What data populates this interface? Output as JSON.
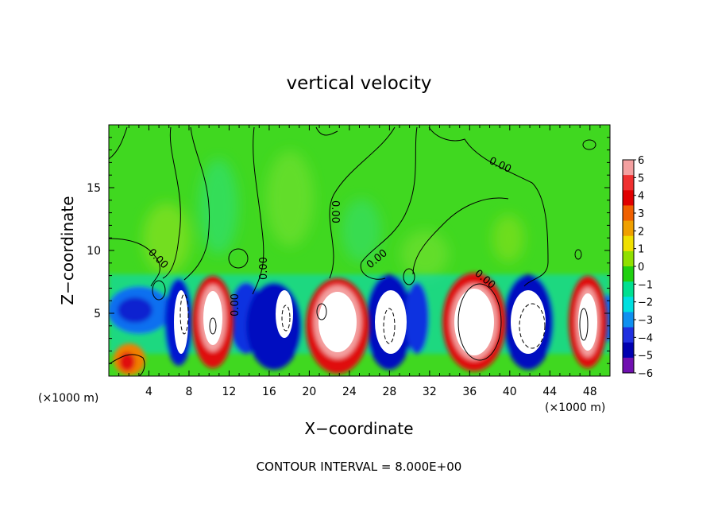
{
  "chart_data": {
    "type": "heatmap",
    "title": "vertical velocity",
    "xlabel": "X−coordinate",
    "ylabel": "Z−coordinate",
    "x_unit_left": "(×1000 m)",
    "x_unit_right": "(×1000 m)",
    "xlim": [
      0,
      50
    ],
    "ylim": [
      0,
      20
    ],
    "x_ticks": [
      4,
      8,
      12,
      16,
      20,
      24,
      28,
      32,
      36,
      40,
      44,
      48
    ],
    "y_ticks": [
      5,
      10,
      15
    ],
    "colorbar": {
      "ticks": [
        "6",
        "5",
        "4",
        "3",
        "2",
        "1",
        "0",
        "−1",
        "−2",
        "−3",
        "−4",
        "−5",
        "−6"
      ],
      "colors": [
        "#f4a0a0",
        "#f03030",
        "#e00000",
        "#f06000",
        "#f0a000",
        "#f0e000",
        "#90e000",
        "#20d010",
        "#00e090",
        "#00e0e0",
        "#1090f0",
        "#2030e0",
        "#0000b0",
        "#7010b0"
      ]
    },
    "contour_labels": [
      "0.00",
      "0.00",
      "0.00",
      "0.00",
      "0.00",
      "0.00",
      "0.00"
    ],
    "updraft_cells": [
      {
        "x": 1.8,
        "z": 1.3,
        "w": 4
      },
      {
        "x": 7.0,
        "z": 4.5,
        "w": -8
      },
      {
        "x": 10.5,
        "z": 4.2,
        "w": 8
      },
      {
        "x": 13.5,
        "z": 4.5,
        "w": -5
      },
      {
        "x": 15.0,
        "z": 4.0,
        "w": -6
      },
      {
        "x": 18.0,
        "z": 4.6,
        "w": -8
      },
      {
        "x": 22.5,
        "z": 4.6,
        "w": 10
      },
      {
        "x": 27.5,
        "z": 4.8,
        "w": -8
      },
      {
        "x": 30.5,
        "z": 4.0,
        "w": -5
      },
      {
        "x": 36.3,
        "z": 4.6,
        "w": 12
      },
      {
        "x": 41.8,
        "z": 4.6,
        "w": -9
      },
      {
        "x": 47.0,
        "z": 4.6,
        "w": 9
      }
    ],
    "footer": "CONTOUR INTERVAL = 8.000E+00"
  }
}
